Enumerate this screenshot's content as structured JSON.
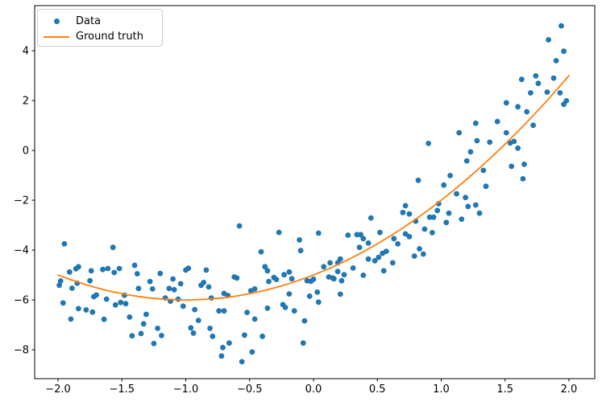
{
  "figure": {
    "background": "#ffffff"
  },
  "chart_data": {
    "type": "scatter",
    "title": "",
    "xlabel": "",
    "ylabel": "",
    "grid": false,
    "legend_position": "upper left",
    "axis_color": "#000000",
    "xlim": [
      -2.183,
      2.202
    ],
    "ylim": [
      -9.16,
      5.81
    ],
    "x_ticks": [
      {
        "v": -2.0,
        "label": "−2.0"
      },
      {
        "v": -1.5,
        "label": "−1.5"
      },
      {
        "v": -1.0,
        "label": "−1.0"
      },
      {
        "v": -0.5,
        "label": "−0.5"
      },
      {
        "v": 0.0,
        "label": "0.0"
      },
      {
        "v": 0.5,
        "label": "0.5"
      },
      {
        "v": 1.0,
        "label": "1.0"
      },
      {
        "v": 1.5,
        "label": "1.5"
      },
      {
        "v": 2.0,
        "label": "2.0"
      }
    ],
    "y_ticks": [
      {
        "v": -8,
        "label": "−8"
      },
      {
        "v": -6,
        "label": "−6"
      },
      {
        "v": -4,
        "label": "−4"
      },
      {
        "v": -2,
        "label": "−2"
      },
      {
        "v": 0,
        "label": "0"
      },
      {
        "v": 2,
        "label": "2"
      },
      {
        "v": 4,
        "label": "4"
      }
    ],
    "series": [
      {
        "name": "Data",
        "type": "scatter",
        "color": "#1f77b4",
        "marker": "circle",
        "points": [
          [
            -1.95,
            -3.75
          ],
          [
            -1.57,
            -3.89
          ],
          [
            -1.91,
            -4.88
          ],
          [
            -1.86,
            -4.75
          ],
          [
            -1.84,
            -4.67
          ],
          [
            -1.74,
            -4.83
          ],
          [
            -1.65,
            -4.78
          ],
          [
            -1.61,
            -4.74
          ],
          [
            -1.56,
            -4.9
          ],
          [
            -1.52,
            -4.74
          ],
          [
            -1.4,
            -4.61
          ],
          [
            -1.38,
            -4.95
          ],
          [
            -1.99,
            -5.41
          ],
          [
            -1.98,
            -5.24
          ],
          [
            -1.89,
            -5.53
          ],
          [
            -1.85,
            -5.33
          ],
          [
            -1.75,
            -5.23
          ],
          [
            -1.7,
            -5.8
          ],
          [
            -1.72,
            -5.87
          ],
          [
            -1.62,
            -5.97
          ],
          [
            -1.48,
            -5.81
          ],
          [
            -1.37,
            -5.54
          ],
          [
            -1.28,
            -5.26
          ],
          [
            -1.26,
            -5.56
          ],
          [
            -1.2,
            -4.94
          ],
          [
            -1.13,
            -5.54
          ],
          [
            -1.1,
            -5.16
          ],
          [
            -1.09,
            -5.59
          ],
          [
            -1.04,
            -5.35
          ],
          [
            -1.0,
            -4.8
          ],
          [
            -0.98,
            -4.73
          ],
          [
            -0.88,
            -5.41
          ],
          [
            -0.86,
            -5.3
          ],
          [
            -0.84,
            -4.8
          ],
          [
            -0.82,
            -5.48
          ],
          [
            -1.16,
            -5.92
          ],
          [
            -1.12,
            -6.05
          ],
          [
            -1.06,
            -5.97
          ],
          [
            -1.02,
            -6.25
          ],
          [
            -0.8,
            -5.92
          ],
          [
            -1.96,
            -6.12
          ],
          [
            -1.84,
            -6.35
          ],
          [
            -1.78,
            -6.4
          ],
          [
            -1.73,
            -6.49
          ],
          [
            -1.9,
            -6.77
          ],
          [
            -1.64,
            -6.78
          ],
          [
            -1.55,
            -6.2
          ],
          [
            -1.51,
            -6.1
          ],
          [
            -1.47,
            -6.15
          ],
          [
            -1.44,
            -6.69
          ],
          [
            -1.42,
            -7.44
          ],
          [
            -1.35,
            -7.35
          ],
          [
            -1.33,
            -6.96
          ],
          [
            -1.31,
            -6.58
          ],
          [
            -1.25,
            -7.75
          ],
          [
            -1.22,
            -7.14
          ],
          [
            -1.19,
            -7.43
          ],
          [
            -0.96,
            -7.12
          ],
          [
            -0.94,
            -7.33
          ],
          [
            -0.93,
            -6.39
          ],
          [
            -0.9,
            -6.82
          ],
          [
            -0.81,
            -7.14
          ],
          [
            -0.79,
            -7.46
          ],
          [
            -0.74,
            -6.44
          ],
          [
            -0.72,
            -8.25
          ],
          [
            -0.58,
            -3.03
          ],
          [
            -0.27,
            -3.29
          ],
          [
            -0.11,
            -3.59
          ],
          [
            0.04,
            -3.32
          ],
          [
            -0.1,
            -4.02
          ],
          [
            -0.41,
            -4.07
          ],
          [
            -0.38,
            -4.67
          ],
          [
            -0.36,
            -4.83
          ],
          [
            -0.19,
            -4.88
          ],
          [
            -0.62,
            -5.08
          ],
          [
            -0.6,
            -5.12
          ],
          [
            -0.49,
            -5.63
          ],
          [
            -0.46,
            -5.56
          ],
          [
            -0.7,
            -5.74
          ],
          [
            -0.67,
            -5.82
          ],
          [
            -0.35,
            -5.26
          ],
          [
            -0.31,
            -5.1
          ],
          [
            -0.29,
            -5.18
          ],
          [
            -0.23,
            -4.99
          ],
          [
            -0.17,
            -5.15
          ],
          [
            -0.05,
            -5.23
          ],
          [
            -0.02,
            -5.25
          ],
          [
            0.0,
            -5.17
          ],
          [
            -0.19,
            -5.76
          ],
          [
            -0.03,
            -5.85
          ],
          [
            0.03,
            -5.69
          ],
          [
            0.04,
            -6.09
          ],
          [
            0.21,
            -5.77
          ],
          [
            0.08,
            -4.67
          ],
          [
            0.13,
            -4.51
          ],
          [
            0.19,
            -4.51
          ],
          [
            0.21,
            -4.36
          ],
          [
            0.19,
            -4.86
          ],
          [
            0.24,
            -4.99
          ],
          [
            0.27,
            -3.4
          ],
          [
            0.34,
            -3.38
          ],
          [
            0.37,
            -3.38
          ],
          [
            0.39,
            -3.54
          ],
          [
            0.36,
            -3.89
          ],
          [
            0.43,
            -3.72
          ],
          [
            0.45,
            -2.71
          ],
          [
            0.52,
            -3.29
          ],
          [
            0.54,
            -4.13
          ],
          [
            0.57,
            -4.05
          ],
          [
            0.43,
            -4.36
          ],
          [
            0.31,
            -4.72
          ],
          [
            0.48,
            -4.43
          ],
          [
            0.51,
            -4.29
          ],
          [
            0.63,
            -3.54
          ],
          [
            0.66,
            -3.75
          ],
          [
            0.72,
            -3.35
          ],
          [
            0.75,
            -3.46
          ],
          [
            0.62,
            -4.51
          ],
          [
            0.55,
            -4.83
          ],
          [
            0.39,
            -5.01
          ],
          [
            0.22,
            -5.23
          ],
          [
            0.16,
            -5.15
          ],
          [
            0.12,
            -5.08
          ],
          [
            0.15,
            -5.12
          ],
          [
            -0.7,
            -6.44
          ],
          [
            -0.52,
            -6.5
          ],
          [
            -0.46,
            -6.77
          ],
          [
            -0.36,
            -6.33
          ],
          [
            -0.24,
            -6.19
          ],
          [
            -0.22,
            -6.3
          ],
          [
            -0.15,
            -6.44
          ],
          [
            -0.07,
            -6.84
          ],
          [
            -0.54,
            -7.41
          ],
          [
            -0.4,
            -7.46
          ],
          [
            -0.66,
            -7.73
          ],
          [
            -0.08,
            -7.73
          ],
          [
            -0.48,
            -8.09
          ],
          [
            -0.56,
            -8.48
          ],
          [
            -0.71,
            -7.91
          ],
          [
            0.75,
            -2.55
          ],
          [
            0.8,
            -2.84
          ],
          [
            0.91,
            -2.68
          ],
          [
            0.94,
            -2.68
          ],
          [
            0.97,
            -2.41
          ],
          [
            0.98,
            -2.14
          ],
          [
            1.06,
            -2.52
          ],
          [
            1.04,
            -2.89
          ],
          [
            1.16,
            -2.76
          ],
          [
            1.21,
            -2.25
          ],
          [
            1.27,
            -2.19
          ],
          [
            1.3,
            -2.52
          ],
          [
            0.87,
            -3.16
          ],
          [
            0.93,
            -3.3
          ],
          [
            0.83,
            -3.95
          ],
          [
            0.86,
            -4.16
          ],
          [
            0.79,
            -4.24
          ],
          [
            0.72,
            -2.22
          ],
          [
            0.7,
            -2.49
          ],
          [
            0.82,
            -1.2
          ],
          [
            0.9,
            0.28
          ],
          [
            1.02,
            -1.39
          ],
          [
            1.07,
            -1.01
          ],
          [
            1.14,
            0.71
          ],
          [
            1.12,
            -1.74
          ],
          [
            1.19,
            -1.89
          ],
          [
            1.2,
            -0.42
          ],
          [
            1.23,
            -0.06
          ],
          [
            1.27,
            1.09
          ],
          [
            1.28,
            0.39
          ],
          [
            1.33,
            -0.8
          ],
          [
            1.35,
            -1.44
          ],
          [
            1.38,
            0.33
          ],
          [
            1.44,
            1.16
          ],
          [
            1.51,
            0.71
          ],
          [
            1.54,
            0.3
          ],
          [
            1.57,
            0.36
          ],
          [
            1.6,
            0.09
          ],
          [
            1.55,
            -0.64
          ],
          [
            1.65,
            -0.56
          ],
          [
            1.64,
            -1.14
          ],
          [
            1.67,
            1.55
          ],
          [
            1.72,
            1.01
          ],
          [
            1.6,
            1.75
          ],
          [
            1.51,
            1.91
          ],
          [
            1.94,
            5.0
          ],
          [
            1.84,
            4.44
          ],
          [
            1.96,
            3.98
          ],
          [
            1.9,
            3.6
          ],
          [
            1.88,
            2.9
          ],
          [
            1.74,
            2.99
          ],
          [
            1.63,
            2.85
          ],
          [
            1.76,
            2.69
          ],
          [
            1.7,
            2.31
          ],
          [
            1.83,
            2.34
          ],
          [
            1.93,
            2.31
          ],
          [
            1.98,
            1.99
          ],
          [
            1.96,
            1.85
          ],
          [
            1.51,
            1.91
          ]
        ]
      }
    ],
    "ground_truth": {
      "name": "Ground truth",
      "type": "line",
      "color": "#ff7f0e",
      "formula": "y = x^2 + 2x - 5",
      "points": [
        [
          -2.0,
          -5.0
        ],
        [
          -1.9,
          -5.19
        ],
        [
          -1.8,
          -5.36
        ],
        [
          -1.7,
          -5.51
        ],
        [
          -1.6,
          -5.64
        ],
        [
          -1.5,
          -5.75
        ],
        [
          -1.4,
          -5.84
        ],
        [
          -1.3,
          -5.91
        ],
        [
          -1.2,
          -5.96
        ],
        [
          -1.1,
          -5.99
        ],
        [
          -1.0,
          -6.0
        ],
        [
          -0.9,
          -5.99
        ],
        [
          -0.8,
          -5.96
        ],
        [
          -0.7,
          -5.91
        ],
        [
          -0.6,
          -5.84
        ],
        [
          -0.5,
          -5.75
        ],
        [
          -0.4,
          -5.64
        ],
        [
          -0.3,
          -5.51
        ],
        [
          -0.2,
          -5.36
        ],
        [
          -0.1,
          -5.19
        ],
        [
          0.0,
          -5.0
        ],
        [
          0.1,
          -4.79
        ],
        [
          0.2,
          -4.56
        ],
        [
          0.3,
          -4.31
        ],
        [
          0.4,
          -4.04
        ],
        [
          0.5,
          -3.75
        ],
        [
          0.6,
          -3.44
        ],
        [
          0.7,
          -3.11
        ],
        [
          0.8,
          -2.76
        ],
        [
          0.9,
          -2.39
        ],
        [
          1.0,
          -2.0
        ],
        [
          1.1,
          -1.59
        ],
        [
          1.2,
          -1.16
        ],
        [
          1.3,
          -0.71
        ],
        [
          1.4,
          -0.24
        ],
        [
          1.5,
          0.25
        ],
        [
          1.6,
          0.76
        ],
        [
          1.7,
          1.29
        ],
        [
          1.8,
          1.84
        ],
        [
          1.9,
          2.41
        ],
        [
          2.0,
          3.0
        ]
      ]
    }
  }
}
